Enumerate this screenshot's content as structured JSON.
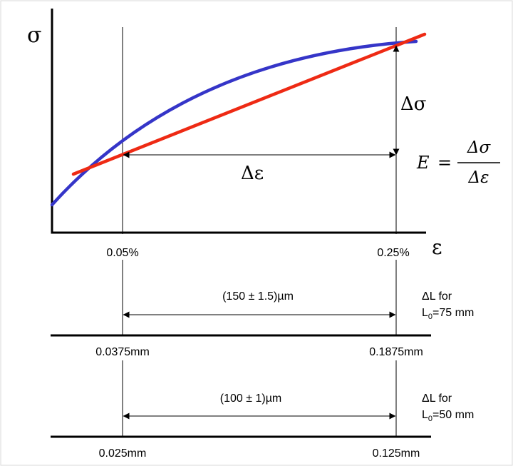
{
  "chart": {
    "y_axis_symbol": "σ",
    "x_axis_symbol": "ε",
    "delta_sigma": "Δσ",
    "delta_epsilon": "Δε",
    "strain_left_label": "0.05%",
    "strain_right_label": "0.25%",
    "curve_color": "#3535c8",
    "secant_color": "#ee2a14"
  },
  "formula": {
    "lhs": "E",
    "equals": "=",
    "numerator": "Δσ",
    "denominator": "Δε"
  },
  "rows": [
    {
      "span_label": "(150 ± 1.5)µm",
      "delta_label": "ΔL for",
      "gauge_prefix": "L",
      "gauge_sub": "0",
      "gauge_value": "=75 mm",
      "left_label": "0.0375mm",
      "right_label": "0.1875mm"
    },
    {
      "span_label": "(100 ± 1)µm",
      "delta_label": "ΔL for",
      "gauge_prefix": "L",
      "gauge_sub": "0",
      "gauge_value": "=50 mm",
      "left_label": "0.025mm",
      "right_label": "0.125mm"
    }
  ]
}
